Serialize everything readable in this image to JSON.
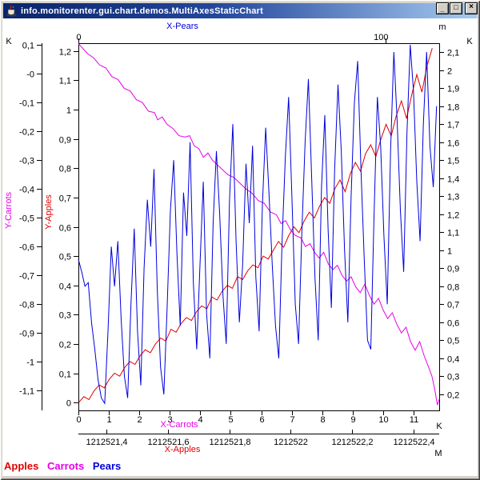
{
  "window": {
    "title": "info.monitorenter.gui.chart.demos.MultiAxesStaticChart",
    "icon": "java-coffee-cup",
    "controls": [
      {
        "name": "minimize",
        "glyph": "_"
      },
      {
        "name": "maximize",
        "glyph": "□"
      },
      {
        "name": "close",
        "glyph": "×"
      }
    ]
  },
  "legend": {
    "items": [
      {
        "label": "Apples",
        "color": "#e00000"
      },
      {
        "label": "Carrots",
        "color": "#e600e6"
      },
      {
        "label": "Pears",
        "color": "#0000dd"
      }
    ]
  },
  "chart_data": {
    "type": "line",
    "grid": false,
    "axes": {
      "x_pears": {
        "title": "X-Pears",
        "title_color": "#0000dd",
        "unit": "m",
        "position": "top",
        "range": [
          0,
          117.5
        ],
        "ticks": [
          [
            0,
            "0"
          ],
          [
            100,
            "100"
          ]
        ]
      },
      "x_carrots": {
        "title": "X-Carrots",
        "title_color": "#e600e6",
        "unit": "K",
        "position": "bottom",
        "range": [
          0,
          11.84
        ],
        "ticks": [
          [
            0,
            "0"
          ],
          [
            1,
            "1"
          ],
          [
            2,
            "2"
          ],
          [
            3,
            "3"
          ],
          [
            4,
            "4"
          ],
          [
            5,
            "5"
          ],
          [
            6,
            "6"
          ],
          [
            7,
            "7"
          ],
          [
            8,
            "8"
          ],
          [
            9,
            "9"
          ],
          [
            10,
            "10"
          ],
          [
            11,
            "11"
          ]
        ]
      },
      "x_apples": {
        "title": "X-Apples",
        "title_color": "#e00000",
        "unit": "M",
        "position": "bottom-outer",
        "range": [
          1212521.309,
          1212522.483
        ],
        "ticks": [
          [
            1212521.4,
            "1212521,4"
          ],
          [
            1212521.6,
            "1212521,6"
          ],
          [
            1212521.8,
            "1212521,8"
          ],
          [
            1212522,
            "1212522"
          ],
          [
            1212522.2,
            "1212522,2"
          ],
          [
            1212522.4,
            "1212522,4"
          ]
        ]
      },
      "y_carrots": {
        "title": "Y-Carrots",
        "title_color": "#e600e6",
        "unit": "K",
        "position": "left-outer",
        "range": [
          -1.169,
          0.106
        ],
        "ticks": [
          [
            0.1,
            "0,1"
          ],
          [
            0,
            "-0"
          ],
          [
            -0.1,
            "-0,1"
          ],
          [
            -0.2,
            "-0,2"
          ],
          [
            -0.3,
            "-0,3"
          ],
          [
            -0.4,
            "-0,4"
          ],
          [
            -0.5,
            "-0,5"
          ],
          [
            -0.6,
            "-0,6"
          ],
          [
            -0.7,
            "-0,7"
          ],
          [
            -0.8,
            "-0,8"
          ],
          [
            -0.9,
            "-0,9"
          ],
          [
            -1,
            "-1"
          ],
          [
            -1.1,
            "-1,1"
          ]
        ]
      },
      "y_apples": {
        "title": "Y-Apples",
        "title_color": "#e00000",
        "unit": "",
        "position": "left-inner",
        "range": [
          -0.027,
          1.227
        ],
        "ticks": [
          [
            1.2,
            "1,2"
          ],
          [
            1.1,
            "1,1"
          ],
          [
            1,
            "1"
          ],
          [
            0.9,
            "0,9"
          ],
          [
            0.8,
            "0,8"
          ],
          [
            0.7,
            "0,7"
          ],
          [
            0.6,
            "0,6"
          ],
          [
            0.5,
            "0,5"
          ],
          [
            0.4,
            "0,4"
          ],
          [
            0.3,
            "0,3"
          ],
          [
            0.2,
            "0,2"
          ],
          [
            0.1,
            "0,1"
          ],
          [
            0,
            "0"
          ]
        ]
      },
      "y_right": {
        "title": "",
        "title_color": "#000000",
        "unit": "K",
        "position": "right",
        "range": [
          0.111,
          2.149
        ],
        "ticks": [
          [
            2.1,
            "2,1"
          ],
          [
            2,
            "2"
          ],
          [
            1.9,
            "1,9"
          ],
          [
            1.8,
            "1,8"
          ],
          [
            1.7,
            "1,7"
          ],
          [
            1.6,
            "1,6"
          ],
          [
            1.5,
            "1,5"
          ],
          [
            1.4,
            "1,4"
          ],
          [
            1.3,
            "1,3"
          ],
          [
            1.2,
            "1,2"
          ],
          [
            1.1,
            "1,1"
          ],
          [
            1,
            "1"
          ],
          [
            0.9,
            "0,9"
          ],
          [
            0.8,
            "0,8"
          ],
          [
            0.7,
            "0,7"
          ],
          [
            0.6,
            "0,6"
          ],
          [
            0.5,
            "0,5"
          ],
          [
            0.4,
            "0,4"
          ],
          [
            0.3,
            "0,3"
          ],
          [
            0.2,
            "0,2"
          ]
        ]
      }
    },
    "series": [
      {
        "name": "Apples",
        "color": "#e00000",
        "x_axis": "x_apples",
        "y_axis": "y_apples",
        "x_start": 1212521.31,
        "x_step": 0.01667,
        "y": [
          0.0,
          0.02,
          0.01,
          0.04,
          0.06,
          0.05,
          0.08,
          0.1,
          0.09,
          0.12,
          0.14,
          0.13,
          0.16,
          0.18,
          0.17,
          0.2,
          0.22,
          0.21,
          0.25,
          0.24,
          0.27,
          0.29,
          0.28,
          0.31,
          0.33,
          0.32,
          0.36,
          0.35,
          0.38,
          0.4,
          0.39,
          0.43,
          0.42,
          0.45,
          0.47,
          0.46,
          0.5,
          0.49,
          0.52,
          0.55,
          0.53,
          0.57,
          0.6,
          0.58,
          0.62,
          0.65,
          0.63,
          0.67,
          0.7,
          0.68,
          0.73,
          0.76,
          0.72,
          0.78,
          0.82,
          0.79,
          0.85,
          0.88,
          0.84,
          0.9,
          0.95,
          0.91,
          0.98,
          1.03,
          0.97,
          1.05,
          1.12,
          1.06,
          1.15,
          1.21
        ]
      },
      {
        "name": "Carrots",
        "color": "#e600e6",
        "x_axis": "x_carrots",
        "y_axis": "y_carrots",
        "points": [
          [
            0,
            0.105
          ],
          [
            0.3,
            0.07
          ],
          [
            0.5,
            0.055
          ],
          [
            0.7,
            0.03
          ],
          [
            0.9,
            0.02
          ],
          [
            1.1,
            -0.01
          ],
          [
            1.3,
            -0.02
          ],
          [
            1.5,
            -0.05
          ],
          [
            1.7,
            -0.06
          ],
          [
            1.9,
            -0.09
          ],
          [
            2.1,
            -0.1
          ],
          [
            2.3,
            -0.13
          ],
          [
            2.5,
            -0.135
          ],
          [
            2.6,
            -0.16
          ],
          [
            2.75,
            -0.15
          ],
          [
            2.9,
            -0.175
          ],
          [
            3.1,
            -0.19
          ],
          [
            3.3,
            -0.215
          ],
          [
            3.5,
            -0.22
          ],
          [
            3.65,
            -0.215
          ],
          [
            3.8,
            -0.25
          ],
          [
            3.95,
            -0.26
          ],
          [
            4.1,
            -0.29
          ],
          [
            4.25,
            -0.275
          ],
          [
            4.4,
            -0.3
          ],
          [
            4.55,
            -0.315
          ],
          [
            4.7,
            -0.33
          ],
          [
            4.9,
            -0.35
          ],
          [
            5.1,
            -0.36
          ],
          [
            5.3,
            -0.38
          ],
          [
            5.5,
            -0.4
          ],
          [
            5.7,
            -0.415
          ],
          [
            5.9,
            -0.44
          ],
          [
            6.1,
            -0.45
          ],
          [
            6.3,
            -0.48
          ],
          [
            6.5,
            -0.49
          ],
          [
            6.65,
            -0.52
          ],
          [
            6.8,
            -0.51
          ],
          [
            6.95,
            -0.54
          ],
          [
            7.1,
            -0.56
          ],
          [
            7.3,
            -0.57
          ],
          [
            7.45,
            -0.6
          ],
          [
            7.6,
            -0.59
          ],
          [
            7.75,
            -0.62
          ],
          [
            7.9,
            -0.64
          ],
          [
            8.05,
            -0.62
          ],
          [
            8.2,
            -0.66
          ],
          [
            8.35,
            -0.68
          ],
          [
            8.5,
            -0.665
          ],
          [
            8.65,
            -0.7
          ],
          [
            8.8,
            -0.72
          ],
          [
            8.95,
            -0.705
          ],
          [
            9.1,
            -0.74
          ],
          [
            9.25,
            -0.76
          ],
          [
            9.4,
            -0.73
          ],
          [
            9.55,
            -0.77
          ],
          [
            9.7,
            -0.8
          ],
          [
            9.85,
            -0.78
          ],
          [
            10,
            -0.82
          ],
          [
            10.15,
            -0.85
          ],
          [
            10.3,
            -0.83
          ],
          [
            10.45,
            -0.87
          ],
          [
            10.6,
            -0.9
          ],
          [
            10.75,
            -0.88
          ],
          [
            10.9,
            -0.93
          ],
          [
            11.05,
            -0.96
          ],
          [
            11.2,
            -0.93
          ],
          [
            11.35,
            -0.98
          ],
          [
            11.5,
            -1.02
          ],
          [
            11.6,
            -1.05
          ],
          [
            11.7,
            -1.1
          ],
          [
            11.78,
            -1.15
          ],
          [
            11.84,
            -1.13
          ]
        ]
      },
      {
        "name": "Pears",
        "color": "#0000dd",
        "x_axis": "x_pears",
        "y_axis": "y_right",
        "x_start": 0,
        "x_step": 1.07,
        "y": [
          0.95,
          0.88,
          0.8,
          0.82,
          0.6,
          0.45,
          0.28,
          0.18,
          0.15,
          0.55,
          1.02,
          0.8,
          1.05,
          0.62,
          0.3,
          0.18,
          0.7,
          1.12,
          0.55,
          0.25,
          0.9,
          1.28,
          1.02,
          1.45,
          0.78,
          0.35,
          0.2,
          0.68,
          1.22,
          1.5,
          0.98,
          0.58,
          1.32,
          1.08,
          1.6,
          0.82,
          0.45,
          0.92,
          1.38,
          0.65,
          0.4,
          1.15,
          1.55,
          1.2,
          0.75,
          0.48,
          1.28,
          1.7,
          1.05,
          0.6,
          0.92,
          1.48,
          1.15,
          1.58,
          0.85,
          0.55,
          1.25,
          1.68,
          1.32,
          0.92,
          0.58,
          0.4,
          1.05,
          1.52,
          1.85,
          1.28,
          0.7,
          0.48,
          1.1,
          1.6,
          1.95,
          1.4,
          0.85,
          0.5,
          1.35,
          1.75,
          1.12,
          0.68,
          1.45,
          1.92,
          1.55,
          1.0,
          0.6,
          1.3,
          1.82,
          2.05,
          1.45,
          0.95,
          0.5,
          0.45,
          1.2,
          1.85,
          1.58,
          1.08,
          0.7,
          1.55,
          2.1,
          1.72,
          1.22,
          0.88,
          1.65,
          2.14,
          1.88,
          1.38,
          1.05,
          1.7,
          2.1,
          1.58,
          1.35,
          1.8
        ]
      }
    ]
  }
}
